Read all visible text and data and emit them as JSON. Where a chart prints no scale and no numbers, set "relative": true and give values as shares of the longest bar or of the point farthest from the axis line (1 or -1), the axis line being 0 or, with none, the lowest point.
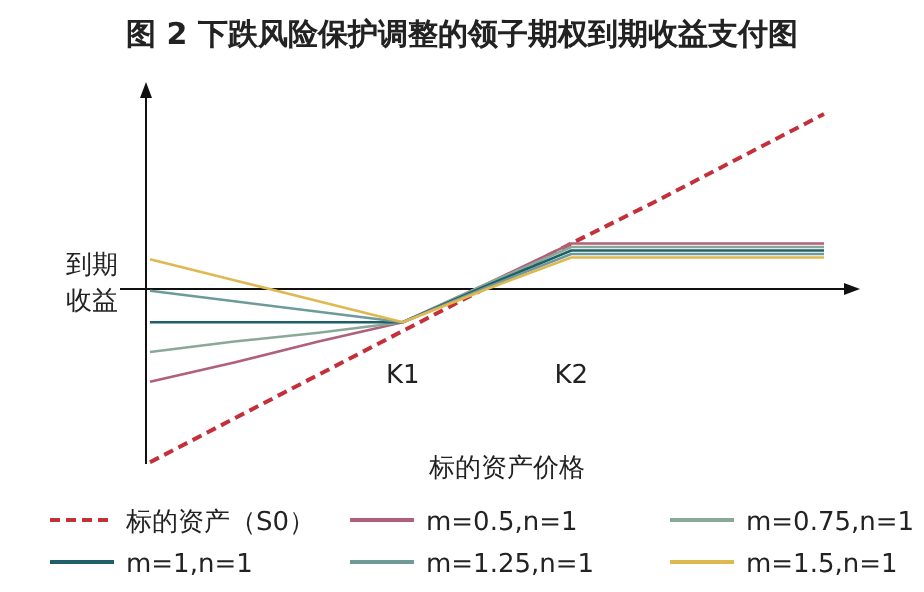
{
  "chart_data": {
    "type": "line",
    "title": "图 2  下跌风险保护调整的领子期权到期收益支付图",
    "xlabel": "标的资产价格",
    "ylabel": "到期收益",
    "relative": true,
    "categories": [
      null,
      null,
      null,
      "K1",
      null,
      "K2",
      null,
      null,
      null
    ],
    "legend": "bottom",
    "series": [
      {
        "name": "标的资产（S0）",
        "color": "#c4303a",
        "line_style": "dashed",
        "values": [
          -0.99,
          -0.74,
          -0.49,
          -0.24,
          0.01,
          0.26,
          0.5,
          0.75,
          1
        ]
      },
      {
        "name": "m=0.5,n=1",
        "color": "#b0607a",
        "values": [
          -0.53,
          -0.42,
          -0.3,
          -0.19,
          0.03,
          0.26,
          0.26,
          0.26,
          0.26
        ]
      },
      {
        "name": "m=0.75,n=1",
        "color": "#8aa898",
        "values": [
          -0.36,
          -0.3,
          -0.25,
          -0.19,
          0.03,
          0.24,
          0.24,
          0.24,
          0.24
        ]
      },
      {
        "name": "m=1,n=1",
        "color": "#1f5f6a",
        "values": [
          -0.19,
          -0.19,
          -0.19,
          -0.19,
          0.02,
          0.22,
          0.22,
          0.22,
          0.22
        ]
      },
      {
        "name": "m=1.25,n=1",
        "color": "#6f9a9a",
        "values": [
          -0.01,
          -0.07,
          -0.13,
          -0.19,
          0.01,
          0.2,
          0.2,
          0.2,
          0.2
        ]
      },
      {
        "name": "m=1.5,n=1",
        "color": "#e0b850",
        "values": [
          0.17,
          0.05,
          -0.07,
          -0.19,
          0,
          0.18,
          0.18,
          0.18,
          0.18
        ]
      }
    ]
  }
}
